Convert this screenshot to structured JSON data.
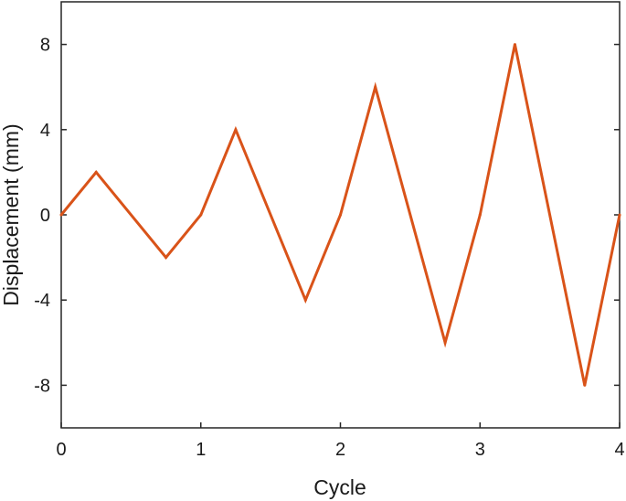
{
  "chart_data": {
    "type": "line",
    "title": "",
    "xlabel": "Cycle",
    "ylabel": "Displacement (mm)",
    "xlim": [
      0,
      4
    ],
    "ylim": [
      -10,
      10
    ],
    "xticks": [
      0,
      1,
      2,
      3,
      4
    ],
    "xtick_labels": [
      "0",
      "1",
      "2",
      "3",
      "4"
    ],
    "yticks": [
      8,
      4,
      0,
      -4,
      -8
    ],
    "ytick_labels": [
      "8",
      "4",
      "0",
      "-4",
      "-8"
    ],
    "grid": false,
    "legend": "none",
    "series": [
      {
        "color": "#d95319",
        "x": [
          0,
          0.25,
          0.75,
          1,
          1.25,
          1.75,
          2,
          2.25,
          2.75,
          3,
          3.25,
          3.75,
          4
        ],
        "y": [
          0,
          2,
          -2,
          0,
          4,
          -4,
          0,
          6,
          -6,
          0,
          8,
          -8,
          0
        ]
      }
    ]
  }
}
